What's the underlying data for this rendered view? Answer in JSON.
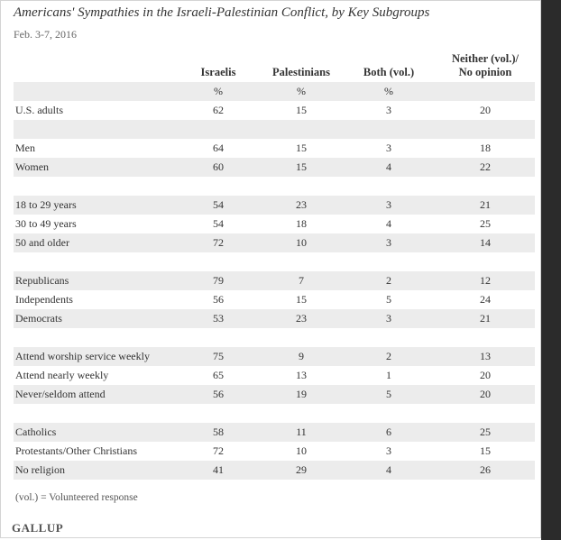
{
  "chart_data": {
    "type": "table",
    "title": "Americans' Sympathies in the Israeli-Palestinian Conflict, by Key Subgroups",
    "subtitle": "Feb. 3-7, 2016",
    "columns": [
      "Israelis",
      "Palestinians",
      "Both (vol.)",
      "Neither (vol.)/\nNo opinion"
    ],
    "units_row": [
      "%",
      "%",
      "%",
      ""
    ],
    "groups": [
      [
        {
          "label": "U.S. adults",
          "values": [
            62,
            15,
            3,
            20
          ]
        }
      ],
      [
        {
          "label": "Men",
          "values": [
            64,
            15,
            3,
            18
          ]
        },
        {
          "label": "Women",
          "values": [
            60,
            15,
            4,
            22
          ]
        }
      ],
      [
        {
          "label": "18 to 29 years",
          "values": [
            54,
            23,
            3,
            21
          ]
        },
        {
          "label": "30 to 49 years",
          "values": [
            54,
            18,
            4,
            25
          ]
        },
        {
          "label": "50 and older",
          "values": [
            72,
            10,
            3,
            14
          ]
        }
      ],
      [
        {
          "label": "Republicans",
          "values": [
            79,
            7,
            2,
            12
          ]
        },
        {
          "label": "Independents",
          "values": [
            56,
            15,
            5,
            24
          ]
        },
        {
          "label": "Democrats",
          "values": [
            53,
            23,
            3,
            21
          ]
        }
      ],
      [
        {
          "label": "Attend worship service weekly",
          "values": [
            75,
            9,
            2,
            13
          ]
        },
        {
          "label": "Attend nearly weekly",
          "values": [
            65,
            13,
            1,
            20
          ]
        },
        {
          "label": "Never/seldom attend",
          "values": [
            56,
            19,
            5,
            20
          ]
        }
      ],
      [
        {
          "label": "Catholics",
          "values": [
            58,
            11,
            6,
            25
          ]
        },
        {
          "label": "Protestants/Other Christians",
          "values": [
            72,
            10,
            3,
            15
          ]
        },
        {
          "label": "No religion",
          "values": [
            41,
            29,
            4,
            26
          ]
        }
      ]
    ],
    "note": "(vol.) = Volunteered response"
  },
  "branding": {
    "logo": "GALLUP"
  },
  "colors": {
    "band": "#ececec",
    "text": "#333333",
    "frame_right": "#2b2b2b"
  }
}
